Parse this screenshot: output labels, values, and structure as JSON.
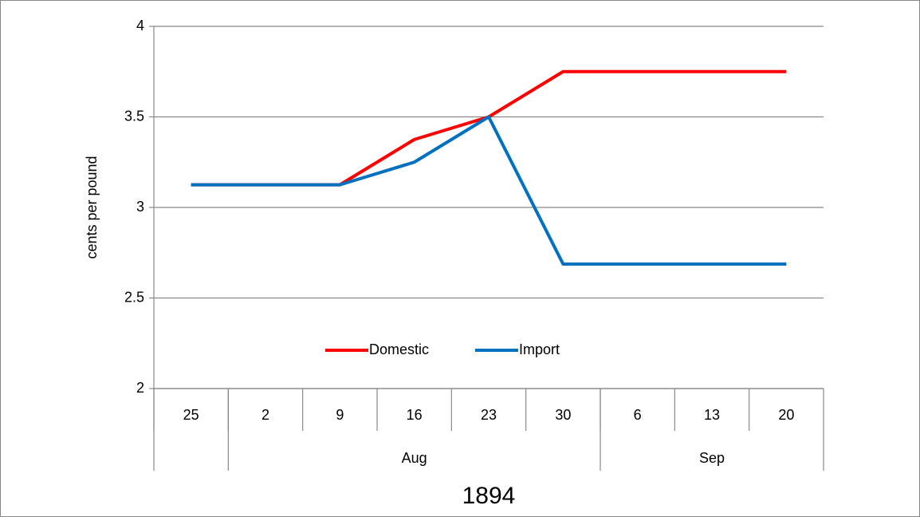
{
  "chart_data": {
    "type": "line",
    "ylabel": "cents per pound",
    "xlabel": "1894",
    "categories": [
      "25",
      "2",
      "9",
      "16",
      "23",
      "30",
      "6",
      "13",
      "20"
    ],
    "x_groups": [
      null,
      "Aug",
      "Aug",
      "Aug",
      "Aug",
      "Aug",
      "Sep",
      "Sep",
      "Sep"
    ],
    "series": [
      {
        "name": "Domestic",
        "color": "#ff0000",
        "values": [
          3.125,
          3.125,
          3.125,
          3.375,
          3.5,
          3.75,
          3.75,
          3.75,
          3.75
        ]
      },
      {
        "name": "Import",
        "color": "#0070c0",
        "values": [
          3.125,
          3.125,
          3.125,
          3.25,
          3.5,
          2.6875,
          2.6875,
          2.6875,
          2.6875
        ]
      }
    ],
    "ylim": [
      2,
      4
    ],
    "yticks": [
      2,
      2.5,
      3,
      3.5,
      4
    ],
    "grid": true,
    "legend": "bottom"
  }
}
